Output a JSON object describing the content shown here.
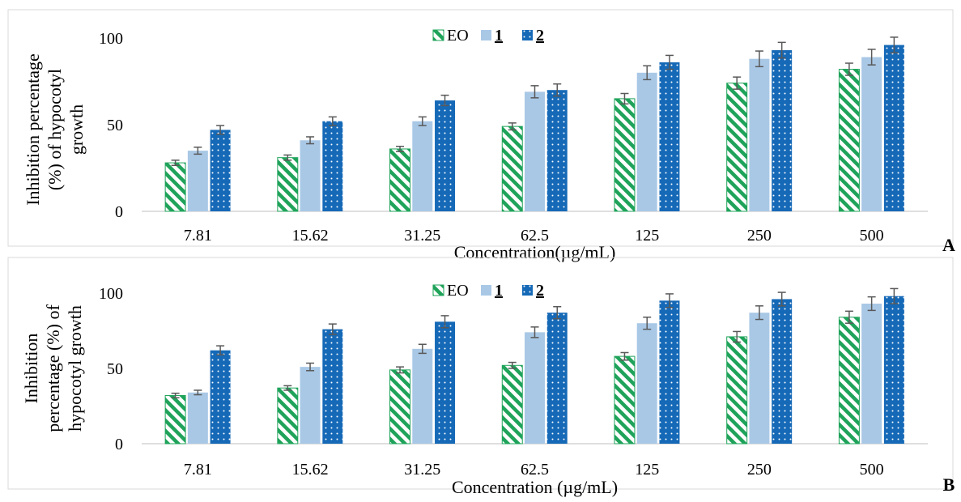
{
  "chart_data": [
    {
      "panel_label": "A",
      "type": "bar",
      "categories": [
        "7.81",
        "15.62",
        "31.25",
        "62.5",
        "125",
        "250",
        "500"
      ],
      "series": [
        {
          "name": "EO",
          "values": [
            28,
            31,
            36,
            49,
            65,
            74,
            82
          ],
          "errors": [
            1.5,
            1.5,
            1.5,
            2,
            3,
            3.5,
            3.5
          ]
        },
        {
          "name": "1",
          "values": [
            35,
            41,
            52,
            69,
            80,
            88,
            89
          ],
          "errors": [
            2,
            2,
            2.5,
            3.5,
            4,
            4.5,
            4.5
          ]
        },
        {
          "name": "2",
          "values": [
            47,
            52,
            64,
            70,
            86,
            93,
            96
          ],
          "errors": [
            2.5,
            2.5,
            3,
            3.5,
            4,
            4.5,
            4.5
          ]
        }
      ],
      "xlabel": "Concentration(µg/mL)",
      "ylabel_lines": [
        "Inhibition percentage",
        "(%) of hypocotyl",
        "growth"
      ],
      "yticks": [
        "0",
        "50",
        "100"
      ],
      "ylim": [
        0,
        100
      ],
      "grid": false,
      "legend_position": "top-center",
      "colors": {
        "EO": "#1fa35a",
        "1": "#a9c8e6",
        "2": "#1569b7"
      }
    },
    {
      "panel_label": "B",
      "type": "bar",
      "categories": [
        "7.81",
        "15.62",
        "31.25",
        "62.5",
        "125",
        "250",
        "500"
      ],
      "series": [
        {
          "name": "EO",
          "values": [
            32,
            37,
            49,
            52,
            58,
            71,
            84
          ],
          "errors": [
            1.5,
            1.5,
            2,
            2,
            2.5,
            3.5,
            4
          ]
        },
        {
          "name": "1",
          "values": [
            34,
            51,
            63,
            74,
            80,
            87,
            93
          ],
          "errors": [
            1.5,
            2.5,
            3,
            3.5,
            4,
            4.5,
            4.5
          ]
        },
        {
          "name": "2",
          "values": [
            62,
            76,
            81,
            87,
            95,
            96,
            98
          ],
          "errors": [
            3,
            3.5,
            4,
            4,
            4.5,
            4.5,
            5
          ]
        }
      ],
      "xlabel": "Concentration (µg/mL)",
      "ylabel_lines": [
        "Inhibition",
        "percentage (%) of",
        "hypocotyl growth"
      ],
      "yticks": [
        "0",
        "50",
        "100"
      ],
      "ylim": [
        0,
        100
      ],
      "grid": false,
      "legend_position": "top-center",
      "colors": {
        "EO": "#1fa35a",
        "1": "#a9c8e6",
        "2": "#1569b7"
      }
    }
  ]
}
